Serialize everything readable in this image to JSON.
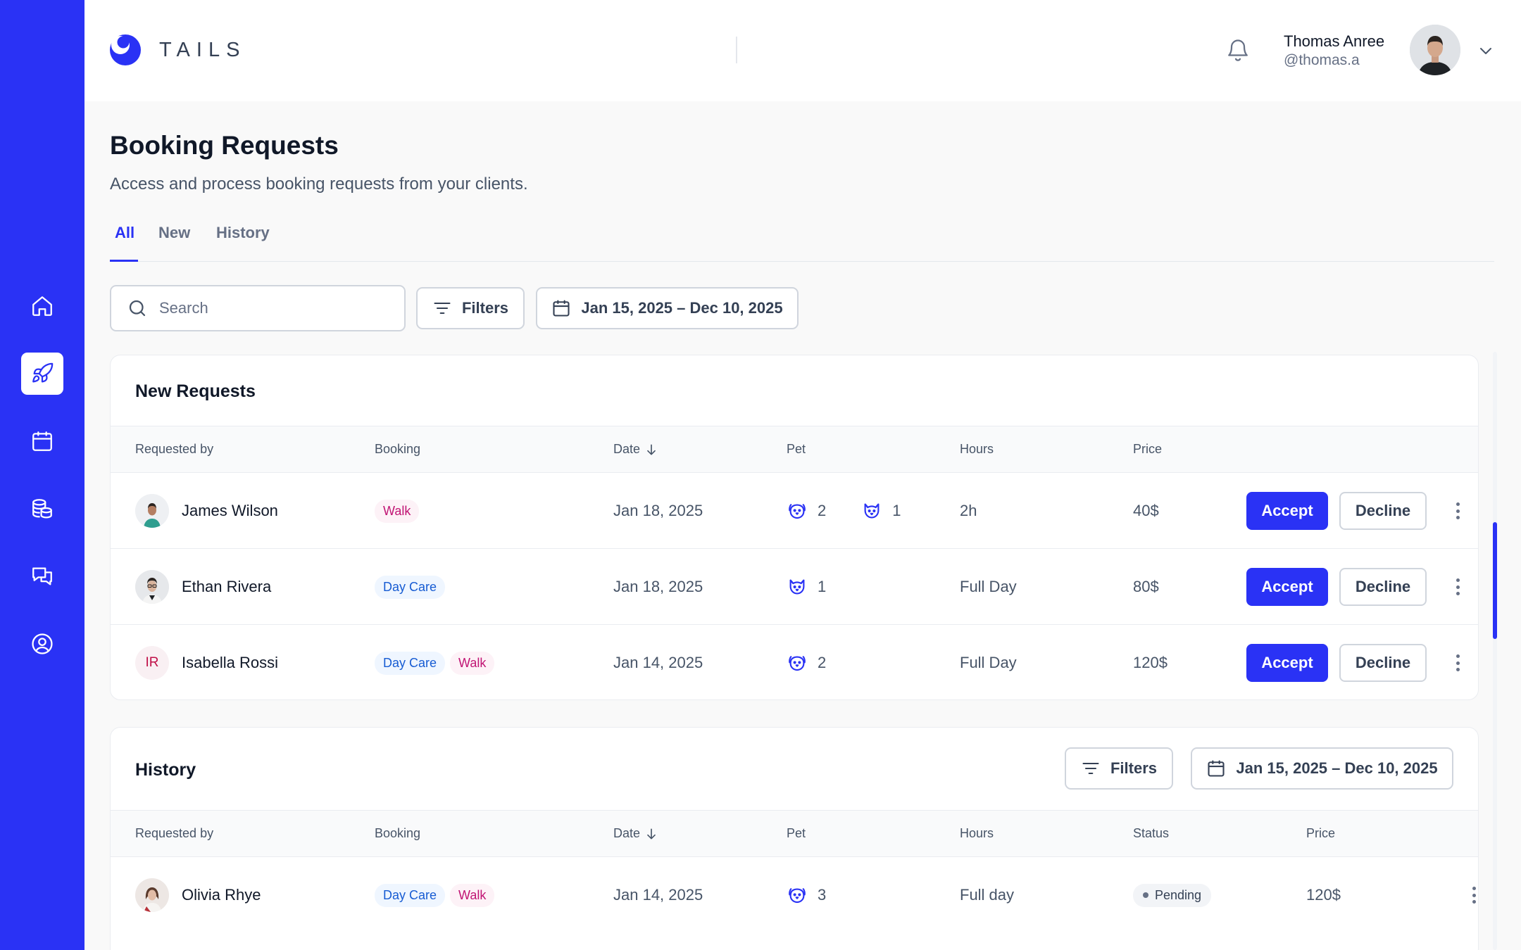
{
  "brand": {
    "name": "TAILS",
    "accent": "#2A32F5"
  },
  "sidebar": {
    "items": [
      {
        "icon": "home-icon"
      },
      {
        "icon": "rocket-icon",
        "active": true
      },
      {
        "icon": "calendar-icon"
      },
      {
        "icon": "coins-icon"
      },
      {
        "icon": "messages-icon"
      },
      {
        "icon": "user-circle-icon"
      }
    ]
  },
  "user": {
    "name": "Thomas Anree",
    "handle": "@thomas.a"
  },
  "page": {
    "title": "Booking Requests",
    "subtitle": "Access and process booking requests from your clients.",
    "tabs": [
      "All",
      "New",
      "History"
    ],
    "active_tab": "All"
  },
  "toolbar": {
    "search_placeholder": "Search",
    "filters_label": "Filters",
    "date_range": "Jan 15, 2025 – Dec 10, 2025"
  },
  "new_requests": {
    "title": "New Requests",
    "columns": [
      "Requested by",
      "Booking",
      "Date",
      "Pet",
      "Hours",
      "Price"
    ],
    "accept_label": "Accept",
    "decline_label": "Decline",
    "rows": [
      {
        "name": "James Wilson",
        "avatar": "photo",
        "bookings": [
          "Walk"
        ],
        "date": "Jan 18, 2025",
        "pets": [
          {
            "type": "dog-icon",
            "count": "2"
          },
          {
            "type": "cat-icon",
            "count": "1"
          }
        ],
        "hours": "2h",
        "price": "40$"
      },
      {
        "name": "Ethan Rivera",
        "avatar": "photo",
        "bookings": [
          "Day Care"
        ],
        "date": "Jan 18, 2025",
        "pets": [
          {
            "type": "cat-icon",
            "count": "1"
          }
        ],
        "hours": "Full Day",
        "price": "80$"
      },
      {
        "name": "Isabella Rossi",
        "avatar": "initials",
        "initials": "IR",
        "bookings": [
          "Day Care",
          "Walk"
        ],
        "date": "Jan 14, 2025",
        "pets": [
          {
            "type": "dog-icon",
            "count": "2"
          }
        ],
        "hours": "Full Day",
        "price": "120$"
      }
    ]
  },
  "history": {
    "title": "History",
    "filters_label": "Filters",
    "date_range": "Jan 15, 2025 – Dec 10, 2025",
    "columns": [
      "Requested by",
      "Booking",
      "Date",
      "Pet",
      "Hours",
      "Status",
      "Price"
    ],
    "rows": [
      {
        "name": "Olivia Rhye",
        "avatar": "photo",
        "bookings": [
          "Day Care",
          "Walk"
        ],
        "date": "Jan 14, 2025",
        "pets": [
          {
            "type": "dog-icon",
            "count": "3"
          }
        ],
        "hours": "Full day",
        "status": "Pending",
        "price": "120$"
      }
    ]
  }
}
